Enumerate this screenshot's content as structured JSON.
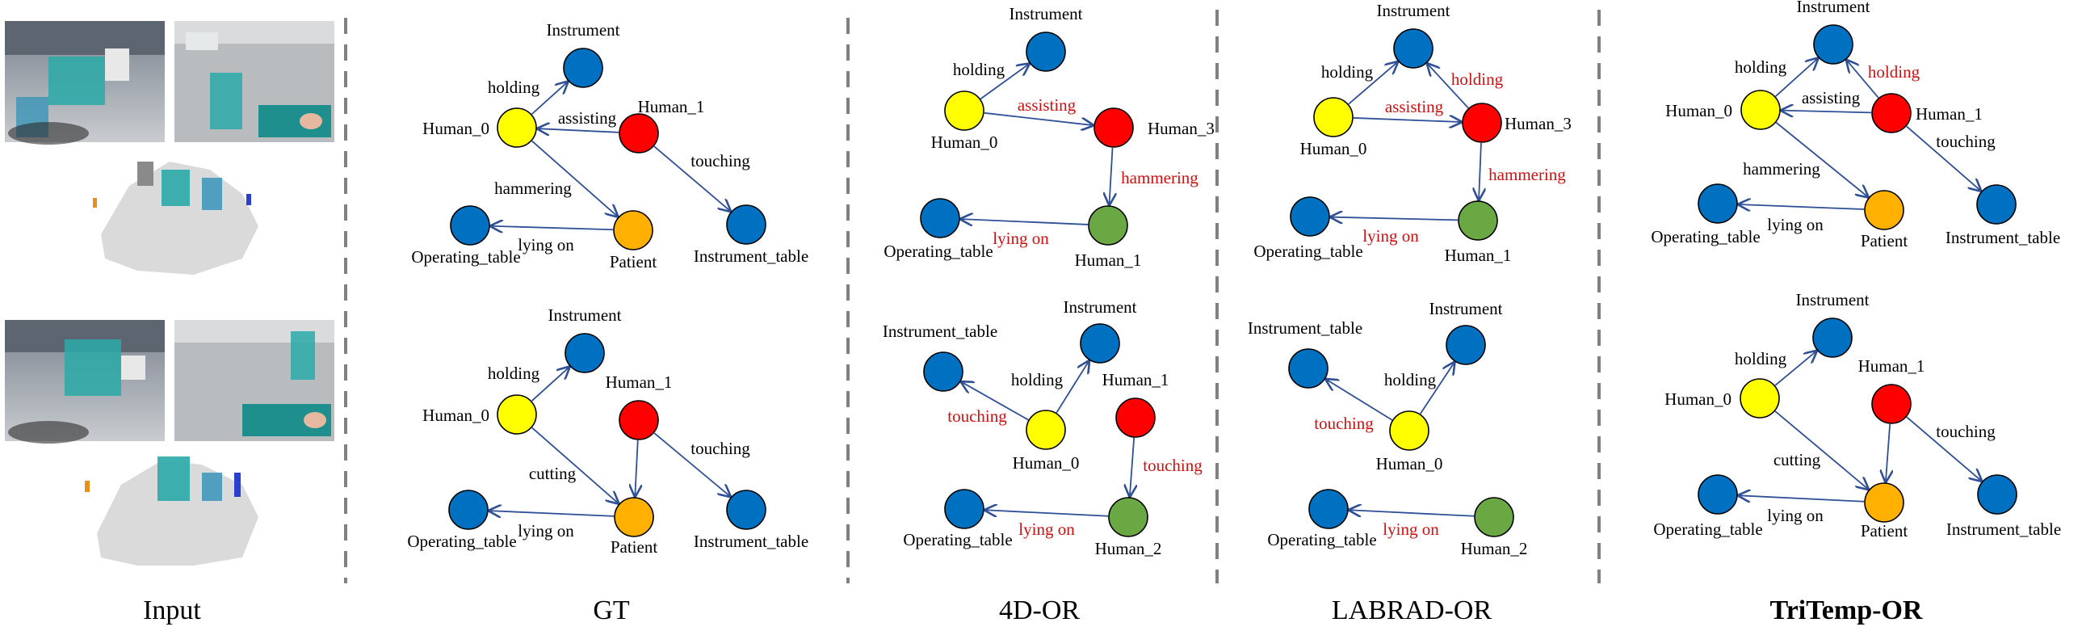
{
  "colors": {
    "human_0": "#ffff00",
    "human_1": "#ff0000",
    "human_2": "#6aa844",
    "object": "#0070c0",
    "patient": "#ffb000",
    "edge": "#2f4f96",
    "error_text": "#d01010",
    "divider": "#808080"
  },
  "columns": [
    {
      "title": "Input",
      "bold": false
    },
    {
      "title": "GT",
      "bold": false
    },
    {
      "title": "4D-OR",
      "bold": false
    },
    {
      "title": "LABRAD-OR",
      "bold": false
    },
    {
      "title": "TriTemp-OR",
      "bold": true
    }
  ],
  "graphs": [
    {
      "id": "gt-top",
      "nodes": [
        {
          "id": "instrument",
          "label": "Instrument",
          "color": "object"
        },
        {
          "id": "human_0",
          "label": "Human_0",
          "color": "human_0"
        },
        {
          "id": "human_1",
          "label": "Human_1",
          "color": "human_1"
        },
        {
          "id": "operating_table",
          "label": "Operating_table",
          "color": "object"
        },
        {
          "id": "patient",
          "label": "Patient",
          "color": "patient"
        },
        {
          "id": "instrument_table",
          "label": "Instrument_table",
          "color": "object"
        }
      ],
      "edges": [
        {
          "from": "human_0",
          "to": "instrument",
          "label": "holding",
          "error": false
        },
        {
          "from": "human_1",
          "to": "human_0",
          "label": "assisting",
          "error": false
        },
        {
          "from": "human_0",
          "to": "patient",
          "label": "hammering",
          "error": false
        },
        {
          "from": "human_1",
          "to": "instrument_table",
          "label": "touching",
          "error": false
        },
        {
          "from": "patient",
          "to": "operating_table",
          "label": "lying on",
          "error": false
        }
      ]
    },
    {
      "id": "gt-bottom",
      "nodes": [
        {
          "id": "instrument",
          "label": "Instrument",
          "color": "object"
        },
        {
          "id": "human_0",
          "label": "Human_0",
          "color": "human_0"
        },
        {
          "id": "human_1",
          "label": "Human_1",
          "color": "human_1"
        },
        {
          "id": "operating_table",
          "label": "Operating_table",
          "color": "object"
        },
        {
          "id": "patient",
          "label": "Patient",
          "color": "patient"
        },
        {
          "id": "instrument_table",
          "label": "Instrument_table",
          "color": "object"
        }
      ],
      "edges": [
        {
          "from": "human_0",
          "to": "instrument",
          "label": "holding",
          "error": false
        },
        {
          "from": "human_0",
          "to": "patient",
          "label": "cutting",
          "error": false
        },
        {
          "from": "human_1",
          "to": "patient",
          "label": "",
          "error": false
        },
        {
          "from": "human_1",
          "to": "instrument_table",
          "label": "touching",
          "error": false
        },
        {
          "from": "patient",
          "to": "operating_table",
          "label": "lying on",
          "error": false
        }
      ]
    },
    {
      "id": "4dor-top",
      "nodes": [
        {
          "id": "instrument",
          "label": "Instrument",
          "color": "object"
        },
        {
          "id": "human_0",
          "label": "Human_0",
          "color": "human_0"
        },
        {
          "id": "human_3",
          "label": "Human_3",
          "color": "human_1"
        },
        {
          "id": "operating_table",
          "label": "Operating_table",
          "color": "object"
        },
        {
          "id": "human_1",
          "label": "Human_1",
          "color": "human_2"
        }
      ],
      "edges": [
        {
          "from": "human_0",
          "to": "instrument",
          "label": "holding",
          "error": false
        },
        {
          "from": "human_0",
          "to": "human_3",
          "label": "assisting",
          "error": true
        },
        {
          "from": "human_3",
          "to": "human_1",
          "label": "hammering",
          "error": true
        },
        {
          "from": "human_1",
          "to": "operating_table",
          "label": "lying on",
          "error": true
        }
      ]
    },
    {
      "id": "4dor-bottom",
      "nodes": [
        {
          "id": "instrument_table",
          "label": "Instrument_table",
          "color": "object"
        },
        {
          "id": "instrument",
          "label": "Instrument",
          "color": "object"
        },
        {
          "id": "human_0",
          "label": "Human_0",
          "color": "human_0"
        },
        {
          "id": "human_1",
          "label": "Human_1",
          "color": "human_1"
        },
        {
          "id": "operating_table",
          "label": "Operating_table",
          "color": "object"
        },
        {
          "id": "human_2",
          "label": "Human_2",
          "color": "human_2"
        }
      ],
      "edges": [
        {
          "from": "human_0",
          "to": "instrument_table",
          "label": "touching",
          "error": true
        },
        {
          "from": "human_0",
          "to": "instrument",
          "label": "holding",
          "error": false
        },
        {
          "from": "human_1",
          "to": "human_2",
          "label": "touching",
          "error": true
        },
        {
          "from": "human_2",
          "to": "operating_table",
          "label": "lying on",
          "error": true
        }
      ]
    },
    {
      "id": "labrad-top",
      "nodes": [
        {
          "id": "instrument",
          "label": "Instrument",
          "color": "object"
        },
        {
          "id": "human_0",
          "label": "Human_0",
          "color": "human_0"
        },
        {
          "id": "human_3",
          "label": "Human_3",
          "color": "human_1"
        },
        {
          "id": "operating_table",
          "label": "Operating_table",
          "color": "object"
        },
        {
          "id": "human_1",
          "label": "Human_1",
          "color": "human_2"
        }
      ],
      "edges": [
        {
          "from": "human_0",
          "to": "instrument",
          "label": "holding",
          "error": false
        },
        {
          "from": "human_3",
          "to": "instrument",
          "label": "holding",
          "error": true
        },
        {
          "from": "human_0",
          "to": "human_3",
          "label": "assisting",
          "error": true
        },
        {
          "from": "human_3",
          "to": "human_1",
          "label": "hammering",
          "error": true
        },
        {
          "from": "human_1",
          "to": "operating_table",
          "label": "lying on",
          "error": true
        }
      ]
    },
    {
      "id": "labrad-bottom",
      "nodes": [
        {
          "id": "instrument_table",
          "label": "Instrument_table",
          "color": "object"
        },
        {
          "id": "instrument",
          "label": "Instrument",
          "color": "object"
        },
        {
          "id": "human_0",
          "label": "Human_0",
          "color": "human_0"
        },
        {
          "id": "operating_table",
          "label": "Operating_table",
          "color": "object"
        },
        {
          "id": "human_2",
          "label": "Human_2",
          "color": "human_2"
        }
      ],
      "edges": [
        {
          "from": "human_0",
          "to": "instrument_table",
          "label": "touching",
          "error": true
        },
        {
          "from": "human_0",
          "to": "instrument",
          "label": "holding",
          "error": false
        },
        {
          "from": "human_2",
          "to": "operating_table",
          "label": "lying on",
          "error": true
        }
      ]
    },
    {
      "id": "tritemp-top",
      "nodes": [
        {
          "id": "instrument",
          "label": "Instrument",
          "color": "object"
        },
        {
          "id": "human_0",
          "label": "Human_0",
          "color": "human_0"
        },
        {
          "id": "human_1",
          "label": "Human_1",
          "color": "human_1"
        },
        {
          "id": "operating_table",
          "label": "Operating_table",
          "color": "object"
        },
        {
          "id": "patient",
          "label": "Patient",
          "color": "patient"
        },
        {
          "id": "instrument_table",
          "label": "Instrument_table",
          "color": "object"
        }
      ],
      "edges": [
        {
          "from": "human_0",
          "to": "instrument",
          "label": "holding",
          "error": false
        },
        {
          "from": "human_1",
          "to": "instrument",
          "label": "holding",
          "error": true
        },
        {
          "from": "human_1",
          "to": "human_0",
          "label": "assisting",
          "error": false
        },
        {
          "from": "human_0",
          "to": "patient",
          "label": "hammering",
          "error": false
        },
        {
          "from": "human_1",
          "to": "instrument_table",
          "label": "touching",
          "error": false
        },
        {
          "from": "patient",
          "to": "operating_table",
          "label": "lying on",
          "error": false
        }
      ]
    },
    {
      "id": "tritemp-bottom",
      "nodes": [
        {
          "id": "instrument",
          "label": "Instrument",
          "color": "object"
        },
        {
          "id": "human_0",
          "label": "Human_0",
          "color": "human_0"
        },
        {
          "id": "human_1",
          "label": "Human_1",
          "color": "human_1"
        },
        {
          "id": "operating_table",
          "label": "Operating_table",
          "color": "object"
        },
        {
          "id": "patient",
          "label": "Patient",
          "color": "patient"
        },
        {
          "id": "instrument_table",
          "label": "Instrument_table",
          "color": "object"
        }
      ],
      "edges": [
        {
          "from": "human_0",
          "to": "instrument",
          "label": "holding",
          "error": false
        },
        {
          "from": "human_0",
          "to": "patient",
          "label": "cutting",
          "error": false
        },
        {
          "from": "human_1",
          "to": "patient",
          "label": "",
          "error": false
        },
        {
          "from": "human_1",
          "to": "instrument_table",
          "label": "touching",
          "error": false
        },
        {
          "from": "patient",
          "to": "operating_table",
          "label": "lying on",
          "error": false
        }
      ]
    }
  ]
}
